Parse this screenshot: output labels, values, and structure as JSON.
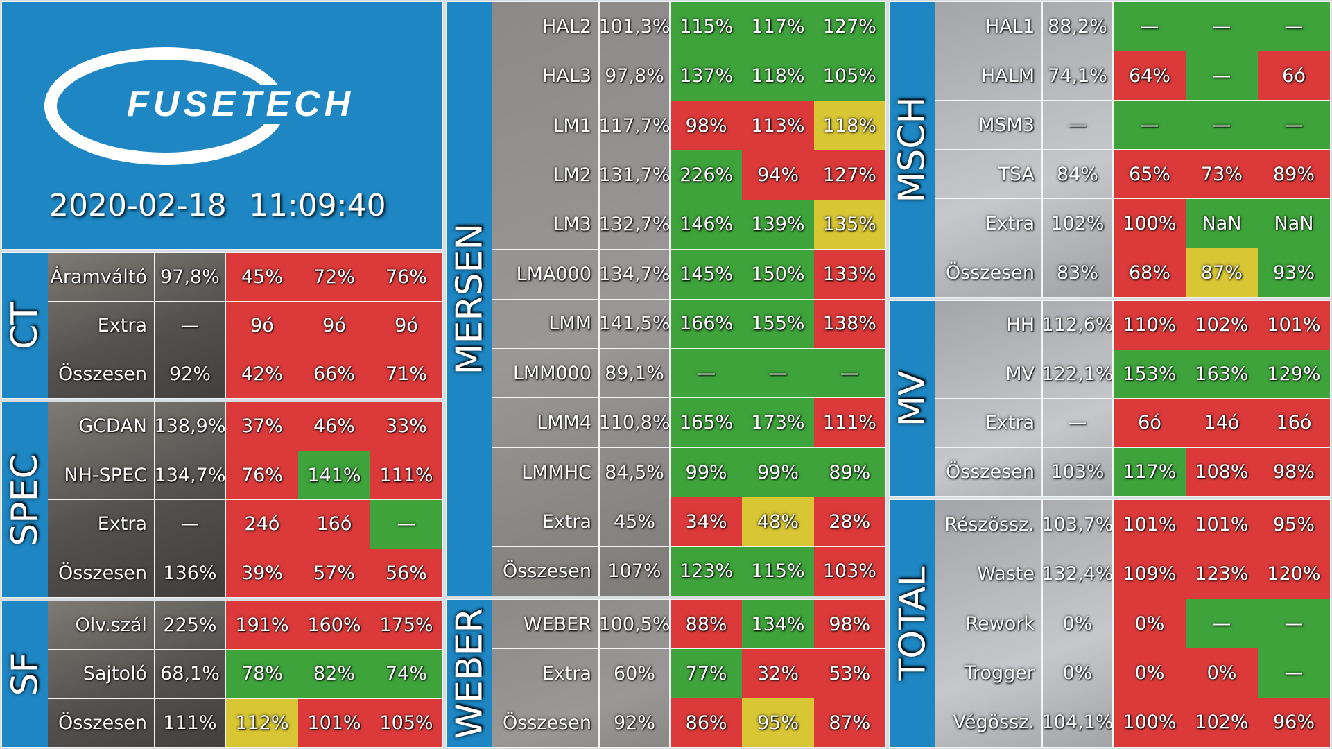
{
  "header": {
    "brand": "FUSETECH",
    "date": "2020-02-18",
    "time": "11:09:40"
  },
  "colors": {
    "green": "#3ea33b",
    "red": "#dc3a3a",
    "yellow": "#d8c634",
    "blue": "#1d86c3"
  },
  "ct": {
    "title": "CT",
    "rows": [
      {
        "name": "Áramváltó",
        "base": "97,8%",
        "c": [
          "45%",
          "72%",
          "76%"
        ],
        "s": [
          "r",
          "r",
          "r"
        ]
      },
      {
        "name": "Extra",
        "base": "—",
        "c": [
          "9ó",
          "9ó",
          "9ó"
        ],
        "s": [
          "r",
          "r",
          "r"
        ]
      },
      {
        "name": "Összesen",
        "base": "92%",
        "c": [
          "42%",
          "66%",
          "71%"
        ],
        "s": [
          "r",
          "r",
          "r"
        ]
      }
    ]
  },
  "spec": {
    "title": "SPEC",
    "rows": [
      {
        "name": "GCDAN",
        "base": "138,9%",
        "c": [
          "37%",
          "46%",
          "33%"
        ],
        "s": [
          "r",
          "r",
          "r"
        ]
      },
      {
        "name": "NH-SPEC",
        "base": "134,7%",
        "c": [
          "76%",
          "141%",
          "111%"
        ],
        "s": [
          "r",
          "g",
          "r"
        ]
      },
      {
        "name": "Extra",
        "base": "—",
        "c": [
          "24ó",
          "16ó",
          "—"
        ],
        "s": [
          "r",
          "r",
          "g"
        ]
      },
      {
        "name": "Összesen",
        "base": "136%",
        "c": [
          "39%",
          "57%",
          "56%"
        ],
        "s": [
          "r",
          "r",
          "r"
        ]
      }
    ]
  },
  "sf": {
    "title": "SF",
    "rows": [
      {
        "name": "Olv.szál",
        "base": "225%",
        "c": [
          "191%",
          "160%",
          "175%"
        ],
        "s": [
          "r",
          "r",
          "r"
        ]
      },
      {
        "name": "Sajtoló",
        "base": "68,1%",
        "c": [
          "78%",
          "82%",
          "74%"
        ],
        "s": [
          "g",
          "g",
          "g"
        ]
      },
      {
        "name": "Összesen",
        "base": "111%",
        "c": [
          "112%",
          "101%",
          "105%"
        ],
        "s": [
          "y",
          "r",
          "r"
        ]
      }
    ]
  },
  "mersen": {
    "title": "MERSEN",
    "rows": [
      {
        "name": "HAL2",
        "base": "101,3%",
        "c": [
          "115%",
          "117%",
          "127%"
        ],
        "s": [
          "g",
          "g",
          "g"
        ]
      },
      {
        "name": "HAL3",
        "base": "97,8%",
        "c": [
          "137%",
          "118%",
          "105%"
        ],
        "s": [
          "g",
          "g",
          "g"
        ]
      },
      {
        "name": "LM1",
        "base": "117,7%",
        "c": [
          "98%",
          "113%",
          "118%"
        ],
        "s": [
          "r",
          "r",
          "y"
        ]
      },
      {
        "name": "LM2",
        "base": "131,7%",
        "c": [
          "226%",
          "94%",
          "127%"
        ],
        "s": [
          "g",
          "r",
          "r"
        ]
      },
      {
        "name": "LM3",
        "base": "132,7%",
        "c": [
          "146%",
          "139%",
          "135%"
        ],
        "s": [
          "g",
          "g",
          "y"
        ]
      },
      {
        "name": "LMA000",
        "base": "134,7%",
        "c": [
          "145%",
          "150%",
          "133%"
        ],
        "s": [
          "g",
          "g",
          "r"
        ]
      },
      {
        "name": "LMM",
        "base": "141,5%",
        "c": [
          "166%",
          "155%",
          "138%"
        ],
        "s": [
          "g",
          "g",
          "r"
        ]
      },
      {
        "name": "LMM000",
        "base": "89,1%",
        "c": [
          "—",
          "—",
          "—"
        ],
        "s": [
          "g",
          "g",
          "g"
        ]
      },
      {
        "name": "LMM4",
        "base": "110,8%",
        "c": [
          "165%",
          "173%",
          "111%"
        ],
        "s": [
          "g",
          "g",
          "r"
        ]
      },
      {
        "name": "LMMHC",
        "base": "84,5%",
        "c": [
          "99%",
          "99%",
          "89%"
        ],
        "s": [
          "g",
          "g",
          "g"
        ]
      },
      {
        "name": "Extra",
        "base": "45%",
        "c": [
          "34%",
          "48%",
          "28%"
        ],
        "s": [
          "r",
          "y",
          "r"
        ]
      },
      {
        "name": "Összesen",
        "base": "107%",
        "c": [
          "123%",
          "115%",
          "103%"
        ],
        "s": [
          "g",
          "g",
          "r"
        ]
      }
    ]
  },
  "weber": {
    "title": "WEBER",
    "rows": [
      {
        "name": "WEBER",
        "base": "100,5%",
        "c": [
          "88%",
          "134%",
          "98%"
        ],
        "s": [
          "r",
          "g",
          "r"
        ]
      },
      {
        "name": "Extra",
        "base": "60%",
        "c": [
          "77%",
          "32%",
          "53%"
        ],
        "s": [
          "g",
          "r",
          "r"
        ]
      },
      {
        "name": "Összesen",
        "base": "92%",
        "c": [
          "86%",
          "95%",
          "87%"
        ],
        "s": [
          "r",
          "y",
          "r"
        ]
      }
    ]
  },
  "msch": {
    "title": "MSCH",
    "rows": [
      {
        "name": "HAL1",
        "base": "88,2%",
        "c": [
          "—",
          "—",
          "—"
        ],
        "s": [
          "g",
          "g",
          "g"
        ]
      },
      {
        "name": "HALM",
        "base": "74,1%",
        "c": [
          "64%",
          "—",
          "6ó"
        ],
        "s": [
          "r",
          "g",
          "r"
        ]
      },
      {
        "name": "MSM3",
        "base": "—",
        "c": [
          "—",
          "—",
          "—"
        ],
        "s": [
          "g",
          "g",
          "g"
        ]
      },
      {
        "name": "TSA",
        "base": "84%",
        "c": [
          "65%",
          "73%",
          "89%"
        ],
        "s": [
          "r",
          "r",
          "r"
        ]
      },
      {
        "name": "Extra",
        "base": "102%",
        "c": [
          "100%",
          "NaN",
          "NaN"
        ],
        "s": [
          "r",
          "g",
          "g"
        ]
      },
      {
        "name": "Összesen",
        "base": "83%",
        "c": [
          "68%",
          "87%",
          "93%"
        ],
        "s": [
          "r",
          "y",
          "g"
        ]
      }
    ]
  },
  "mv": {
    "title": "MV",
    "rows": [
      {
        "name": "HH",
        "base": "112,6%",
        "c": [
          "110%",
          "102%",
          "101%"
        ],
        "s": [
          "r",
          "r",
          "r"
        ]
      },
      {
        "name": "MV",
        "base": "122,1%",
        "c": [
          "153%",
          "163%",
          "129%"
        ],
        "s": [
          "g",
          "g",
          "g"
        ]
      },
      {
        "name": "Extra",
        "base": "—",
        "c": [
          "6ó",
          "14ó",
          "16ó"
        ],
        "s": [
          "r",
          "r",
          "r"
        ]
      },
      {
        "name": "Összesen",
        "base": "103%",
        "c": [
          "117%",
          "108%",
          "98%"
        ],
        "s": [
          "g",
          "r",
          "r"
        ]
      }
    ]
  },
  "total": {
    "title": "TOTAL",
    "rows": [
      {
        "name": "Részössz.",
        "base": "103,7%",
        "c": [
          "101%",
          "101%",
          "95%"
        ],
        "s": [
          "r",
          "r",
          "r"
        ]
      },
      {
        "name": "Waste",
        "base": "132,4%",
        "c": [
          "109%",
          "123%",
          "120%"
        ],
        "s": [
          "r",
          "r",
          "r"
        ]
      },
      {
        "name": "Rework",
        "base": "0%",
        "c": [
          "0%",
          "—",
          "—"
        ],
        "s": [
          "r",
          "g",
          "g"
        ]
      },
      {
        "name": "Trogger",
        "base": "0%",
        "c": [
          "0%",
          "0%",
          "—"
        ],
        "s": [
          "r",
          "r",
          "g"
        ]
      },
      {
        "name": "Végössz.",
        "base": "104,1%",
        "c": [
          "100%",
          "102%",
          "96%"
        ],
        "s": [
          "r",
          "r",
          "r"
        ]
      }
    ]
  }
}
